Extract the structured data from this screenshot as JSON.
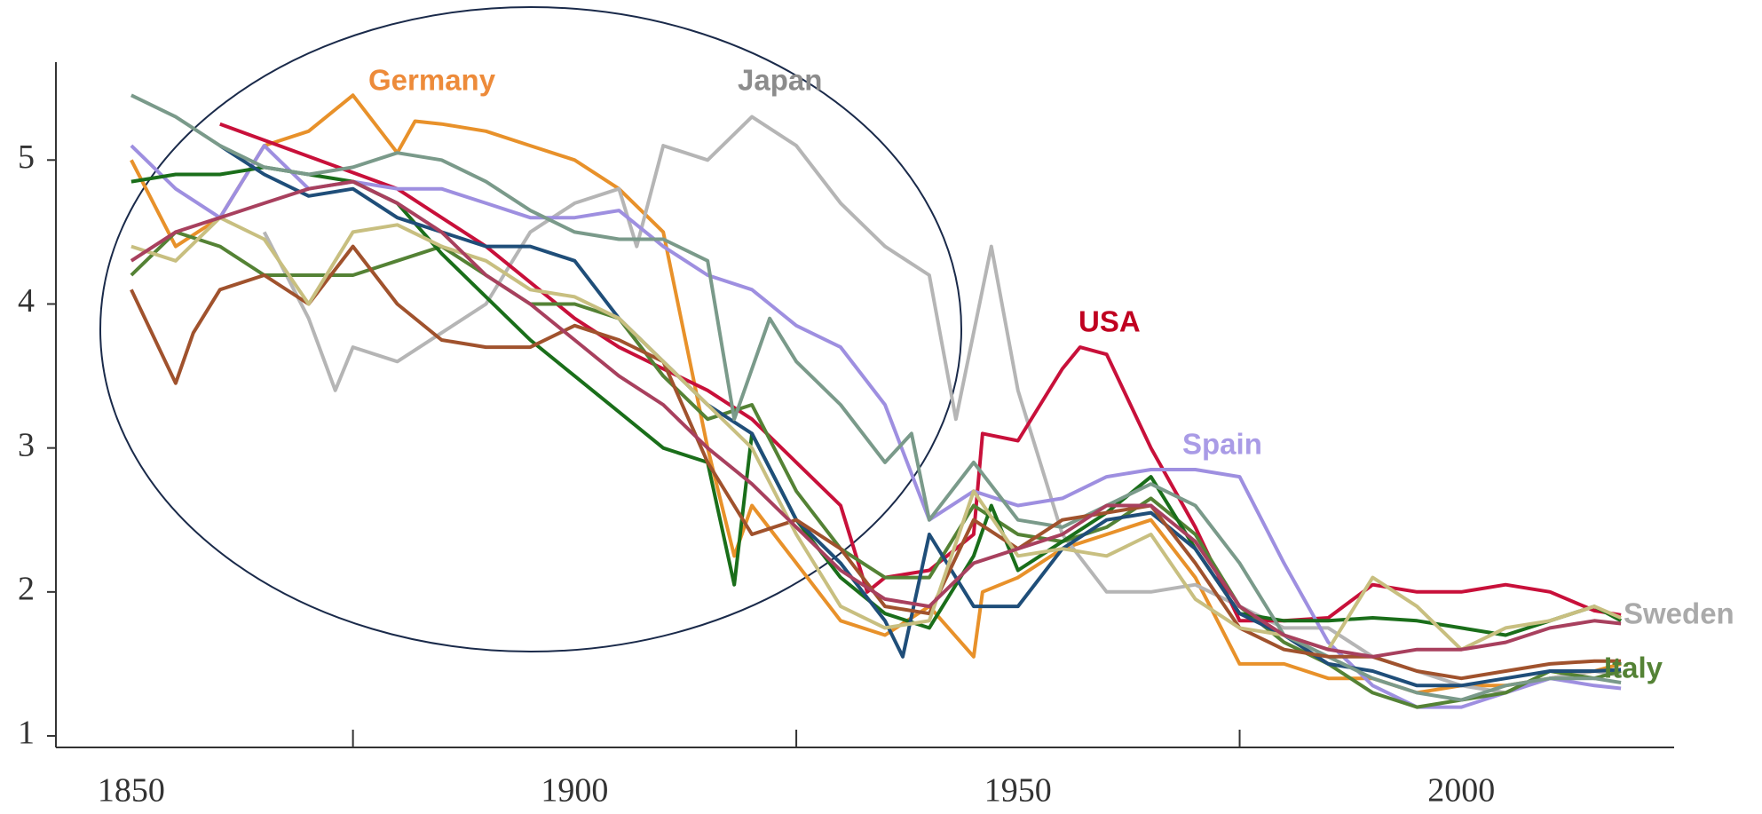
{
  "chart_data": {
    "type": "line",
    "xlim": [
      1841.5,
      2024
    ],
    "ylim": [
      0.92,
      5.68
    ],
    "xticks": [
      1850,
      1900,
      1950,
      2000
    ],
    "xticks_minor": [
      1875,
      1925,
      1975
    ],
    "yticks": [
      1,
      2,
      3,
      4,
      5
    ],
    "series": [
      {
        "color": "#e8912a",
        "x": [
          1850,
          1855,
          1860,
          1865,
          1870,
          1875,
          1880,
          1882,
          1885,
          1890,
          1895,
          1900,
          1905,
          1910,
          1915,
          1918,
          1920,
          1925,
          1930,
          1935,
          1940,
          1945,
          1946,
          1950,
          1955,
          1960,
          1965,
          1970,
          1975,
          1980,
          1985,
          1990,
          1995,
          2000,
          2005,
          2010,
          2015,
          2018
        ],
        "values": [
          5.0,
          4.4,
          4.6,
          5.1,
          5.2,
          5.45,
          5.05,
          5.27,
          5.25,
          5.2,
          5.1,
          5.0,
          4.8,
          4.5,
          3.0,
          2.25,
          2.6,
          2.2,
          1.8,
          1.7,
          1.9,
          1.55,
          2.0,
          2.1,
          2.3,
          2.4,
          2.5,
          2.1,
          1.5,
          1.5,
          1.4,
          1.4,
          1.3,
          1.35,
          1.35,
          1.4,
          1.45,
          1.5
        ]
      },
      {
        "color": "#b5b5b5",
        "x": [
          1865,
          1870,
          1873,
          1875,
          1880,
          1885,
          1890,
          1895,
          1900,
          1905,
          1907,
          1910,
          1915,
          1920,
          1925,
          1930,
          1935,
          1940,
          1943,
          1947,
          1950,
          1955,
          1960,
          1965,
          1970,
          1975,
          1980,
          1985,
          1990,
          1995,
          2000,
          2005,
          2010,
          2015,
          2018
        ],
        "values": [
          4.5,
          3.9,
          3.4,
          3.7,
          3.6,
          3.8,
          4.0,
          4.5,
          4.7,
          4.8,
          4.4,
          5.1,
          5.0,
          5.3,
          5.1,
          4.7,
          4.4,
          4.2,
          3.2,
          4.4,
          3.4,
          2.4,
          2.0,
          2.0,
          2.05,
          1.9,
          1.75,
          1.75,
          1.55,
          1.45,
          1.35,
          1.3,
          1.4,
          1.45,
          1.42
        ]
      },
      {
        "color": "#c8103a",
        "x": [
          1860,
          1880,
          1890,
          1900,
          1905,
          1910,
          1915,
          1920,
          1925,
          1930,
          1933,
          1935,
          1940,
          1945,
          1946,
          1950,
          1955,
          1957,
          1960,
          1965,
          1970,
          1975,
          1980,
          1985,
          1990,
          1995,
          2000,
          2005,
          2010,
          2015,
          2018
        ],
        "values": [
          5.25,
          4.8,
          4.4,
          3.9,
          3.7,
          3.55,
          3.4,
          3.2,
          2.9,
          2.6,
          2.0,
          2.1,
          2.15,
          2.4,
          3.1,
          3.05,
          3.55,
          3.7,
          3.65,
          3.0,
          2.45,
          1.8,
          1.8,
          1.82,
          2.05,
          2.0,
          2.0,
          2.05,
          2.0,
          1.87,
          1.84
        ]
      },
      {
        "color": "#9e8fe0",
        "x": [
          1850,
          1855,
          1860,
          1865,
          1870,
          1875,
          1880,
          1885,
          1890,
          1895,
          1900,
          1905,
          1910,
          1915,
          1920,
          1925,
          1930,
          1935,
          1940,
          1945,
          1950,
          1955,
          1960,
          1965,
          1970,
          1975,
          1980,
          1985,
          1990,
          1995,
          2000,
          2005,
          2010,
          2015,
          2018
        ],
        "values": [
          5.1,
          4.8,
          4.6,
          5.1,
          4.8,
          4.85,
          4.8,
          4.8,
          4.7,
          4.6,
          4.6,
          4.65,
          4.4,
          4.2,
          4.1,
          3.85,
          3.7,
          3.3,
          2.5,
          2.7,
          2.6,
          2.65,
          2.8,
          2.85,
          2.85,
          2.8,
          2.2,
          1.65,
          1.35,
          1.2,
          1.2,
          1.3,
          1.4,
          1.35,
          1.33
        ]
      },
      {
        "color": "#548235",
        "x": [
          1850,
          1855,
          1860,
          1865,
          1870,
          1875,
          1880,
          1885,
          1890,
          1895,
          1900,
          1905,
          1910,
          1915,
          1920,
          1925,
          1930,
          1935,
          1940,
          1945,
          1950,
          1955,
          1960,
          1965,
          1970,
          1975,
          1980,
          1985,
          1990,
          1995,
          2000,
          2005,
          2010,
          2015,
          2018
        ],
        "values": [
          4.2,
          4.5,
          4.4,
          4.2,
          4.2,
          4.2,
          4.3,
          4.4,
          4.2,
          4.0,
          4.0,
          3.9,
          3.5,
          3.2,
          3.3,
          2.7,
          2.3,
          2.1,
          2.1,
          2.6,
          2.4,
          2.35,
          2.45,
          2.65,
          2.4,
          1.9,
          1.65,
          1.5,
          1.3,
          1.2,
          1.25,
          1.3,
          1.45,
          1.4,
          1.45
        ]
      },
      {
        "color": "#1a6e1a",
        "x": [
          1850,
          1855,
          1860,
          1865,
          1870,
          1875,
          1880,
          1885,
          1890,
          1895,
          1900,
          1905,
          1910,
          1915,
          1918,
          1920,
          1925,
          1930,
          1935,
          1940,
          1945,
          1947,
          1950,
          1955,
          1960,
          1965,
          1970,
          1975,
          1980,
          1985,
          1990,
          1995,
          2000,
          2005,
          2010,
          2015,
          2018
        ],
        "values": [
          4.85,
          4.9,
          4.9,
          4.95,
          4.9,
          4.85,
          4.7,
          4.35,
          4.05,
          3.75,
          3.5,
          3.25,
          3.0,
          2.9,
          2.05,
          3.1,
          2.5,
          2.1,
          1.85,
          1.75,
          2.25,
          2.6,
          2.15,
          2.35,
          2.55,
          2.8,
          2.3,
          1.85,
          1.8,
          1.8,
          1.82,
          1.8,
          1.75,
          1.7,
          1.8,
          1.9,
          1.8
        ]
      },
      {
        "color": "#1f4e79",
        "x": [
          1860,
          1865,
          1870,
          1875,
          1880,
          1885,
          1890,
          1895,
          1900,
          1905,
          1910,
          1915,
          1920,
          1925,
          1930,
          1935,
          1937,
          1940,
          1945,
          1950,
          1955,
          1960,
          1965,
          1970,
          1975,
          1980,
          1985,
          1990,
          1995,
          2000,
          2005,
          2010,
          2015,
          2018
        ],
        "values": [
          5.1,
          4.9,
          4.75,
          4.8,
          4.6,
          4.5,
          4.4,
          4.4,
          4.3,
          3.9,
          3.6,
          3.3,
          3.1,
          2.5,
          2.2,
          1.8,
          1.55,
          2.4,
          1.9,
          1.9,
          2.3,
          2.5,
          2.55,
          2.3,
          1.85,
          1.7,
          1.5,
          1.45,
          1.35,
          1.35,
          1.4,
          1.45,
          1.45,
          1.46
        ]
      },
      {
        "color": "#7a9a8a",
        "x": [
          1850,
          1855,
          1860,
          1865,
          1870,
          1875,
          1880,
          1885,
          1890,
          1895,
          1900,
          1905,
          1910,
          1915,
          1918,
          1922,
          1925,
          1930,
          1935,
          1938,
          1940,
          1945,
          1950,
          1955,
          1960,
          1965,
          1970,
          1975,
          1980,
          1985,
          1990,
          1995,
          2000,
          2005,
          2010,
          2015,
          2018
        ],
        "values": [
          5.45,
          5.3,
          5.1,
          4.95,
          4.9,
          4.95,
          5.05,
          5.0,
          4.85,
          4.65,
          4.5,
          4.45,
          4.45,
          4.3,
          3.2,
          3.9,
          3.6,
          3.3,
          2.9,
          3.1,
          2.5,
          2.9,
          2.5,
          2.45,
          2.6,
          2.75,
          2.6,
          2.2,
          1.7,
          1.55,
          1.4,
          1.3,
          1.25,
          1.35,
          1.4,
          1.4,
          1.37
        ]
      },
      {
        "color": "#a0522d",
        "x": [
          1850,
          1855,
          1857,
          1860,
          1865,
          1870,
          1875,
          1880,
          1885,
          1890,
          1895,
          1900,
          1905,
          1910,
          1915,
          1920,
          1925,
          1930,
          1935,
          1940,
          1945,
          1950,
          1955,
          1960,
          1965,
          1970,
          1975,
          1980,
          1985,
          1990,
          1995,
          2000,
          2005,
          2010,
          2015,
          2018
        ],
        "values": [
          4.1,
          3.45,
          3.8,
          4.1,
          4.2,
          4.0,
          4.4,
          4.0,
          3.75,
          3.7,
          3.7,
          3.85,
          3.75,
          3.6,
          2.9,
          2.4,
          2.5,
          2.3,
          1.9,
          1.85,
          2.5,
          2.3,
          2.5,
          2.55,
          2.6,
          2.2,
          1.75,
          1.6,
          1.55,
          1.55,
          1.45,
          1.4,
          1.45,
          1.5,
          1.52,
          1.52
        ]
      },
      {
        "color": "#c8bf80",
        "x": [
          1850,
          1855,
          1860,
          1865,
          1870,
          1875,
          1880,
          1885,
          1890,
          1895,
          1900,
          1905,
          1910,
          1915,
          1920,
          1925,
          1930,
          1935,
          1940,
          1945,
          1950,
          1955,
          1960,
          1965,
          1970,
          1975,
          1980,
          1985,
          1990,
          1995,
          2000,
          2005,
          2010,
          2015,
          2018
        ],
        "values": [
          4.4,
          4.3,
          4.6,
          4.45,
          4.0,
          4.5,
          4.55,
          4.4,
          4.3,
          4.1,
          4.05,
          3.9,
          3.6,
          3.3,
          3.0,
          2.4,
          1.9,
          1.75,
          1.8,
          2.7,
          2.25,
          2.3,
          2.25,
          2.4,
          1.95,
          1.75,
          1.7,
          1.6,
          2.1,
          1.9,
          1.6,
          1.75,
          1.8,
          1.9,
          1.82
        ]
      },
      {
        "color": "#a8405e",
        "x": [
          1850,
          1855,
          1860,
          1865,
          1870,
          1875,
          1880,
          1885,
          1890,
          1895,
          1900,
          1905,
          1910,
          1915,
          1920,
          1925,
          1930,
          1935,
          1940,
          1945,
          1950,
          1955,
          1960,
          1965,
          1970,
          1975,
          1980,
          1985,
          1990,
          1995,
          2000,
          2005,
          2010,
          2015,
          2018
        ],
        "values": [
          4.3,
          4.5,
          4.6,
          4.7,
          4.8,
          4.85,
          4.7,
          4.5,
          4.2,
          4.0,
          3.75,
          3.5,
          3.3,
          3.0,
          2.75,
          2.45,
          2.15,
          1.95,
          1.9,
          2.2,
          2.3,
          2.4,
          2.6,
          2.6,
          2.35,
          1.9,
          1.7,
          1.6,
          1.55,
          1.6,
          1.6,
          1.65,
          1.75,
          1.8,
          1.78
        ]
      }
    ],
    "annotations": [
      {
        "text": "Germany",
        "color": "#ed8b3a"
      },
      {
        "text": "Japan",
        "color": "#8c8c8c"
      },
      {
        "text": "USA",
        "color": "#c00020"
      },
      {
        "text": "Spain",
        "color": "#a99be6"
      },
      {
        "text": "Sweden",
        "color": "#aaaaaa"
      },
      {
        "text": "Italy",
        "color": "#548235"
      }
    ]
  }
}
